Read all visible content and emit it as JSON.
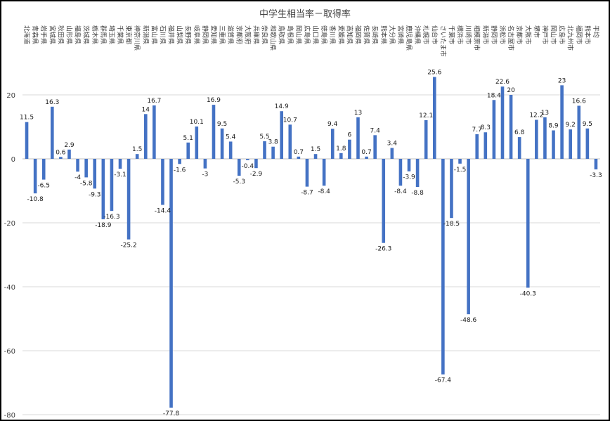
{
  "chart_data": {
    "type": "bar",
    "title": "中学生相当率－取得率",
    "xlabel": "",
    "ylabel": "",
    "ylim": [
      -80,
      20
    ],
    "yticks": [
      20,
      0,
      -20,
      -40,
      -60,
      -80
    ],
    "grid": true,
    "legend": "none",
    "bar_color": "#4472c4",
    "categories": [
      "北海道",
      "青森県",
      "岩手県",
      "宮城県",
      "秋田県",
      "山形県",
      "福島県",
      "茨城県",
      "栃木県",
      "群馬県",
      "埼玉県",
      "千葉県",
      "東京都",
      "神奈川県",
      "新潟県",
      "富山県",
      "石川県",
      "福井県",
      "山梨県",
      "長野県",
      "岐阜県",
      "静岡県",
      "愛知県",
      "三重県",
      "滋賀県",
      "京都府",
      "大阪府",
      "兵庫県",
      "奈良県",
      "和歌山県",
      "鳥取県",
      "島根県",
      "岡山県",
      "広島県",
      "山口県",
      "徳島県",
      "香川県",
      "愛媛県",
      "高知県",
      "福岡県",
      "佐賀県",
      "長崎県",
      "熊本県",
      "大分県",
      "宮崎県",
      "鹿児島県",
      "沖縄県",
      "札幌市",
      "仙台市",
      "さいたま市",
      "千葉市",
      "横浜市",
      "川崎市",
      "相模原市",
      "新潟市",
      "静岡市",
      "浜松市",
      "名古屋市",
      "京都市",
      "大阪市",
      "堺市",
      "神戸市",
      "岡山市",
      "広島市",
      "北九州市",
      "福岡市",
      "熊本市",
      "平均"
    ],
    "values": [
      11.5,
      -10.8,
      -6.5,
      16.3,
      0.6,
      2.9,
      -4,
      -5.8,
      -9.3,
      -18.9,
      -16.3,
      -3.1,
      -25.2,
      1.5,
      14,
      16.7,
      -14.4,
      -77.8,
      -1.6,
      5.1,
      10.1,
      -3,
      16.9,
      9.5,
      5.4,
      -5.3,
      -0.4,
      -2.9,
      5.5,
      3.8,
      14.9,
      10.7,
      0.7,
      -8.7,
      1.5,
      -8.4,
      9.4,
      1.8,
      6,
      13,
      0.7,
      7.4,
      -26.3,
      3.4,
      -8.4,
      -3.9,
      -8.8,
      12.1,
      25.6,
      -67.4,
      -18.5,
      -1.5,
      -48.6,
      7.7,
      8.3,
      18.4,
      22.6,
      20,
      6.8,
      -40.3,
      12.2,
      13,
      8.9,
      23,
      9.2,
      16.6,
      9.5,
      -3.3
    ]
  }
}
